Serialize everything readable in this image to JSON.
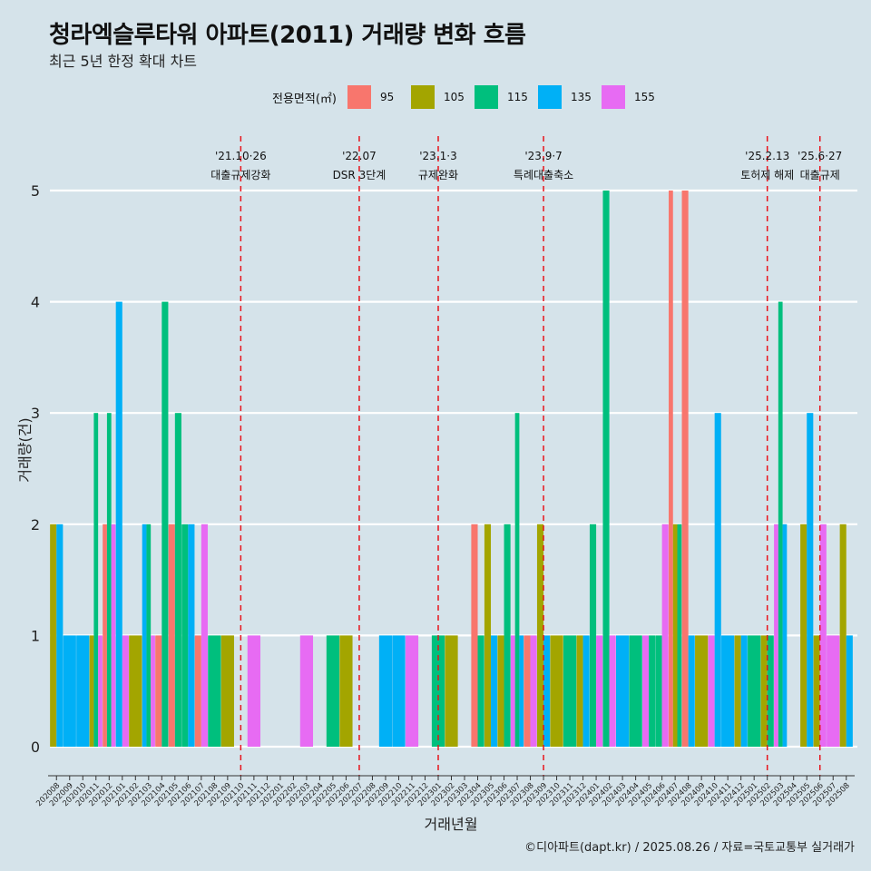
{
  "title": "청라엑슬루타워 아파트(2011) 거래량 변화 흐름",
  "subtitle": "최근 5년 한정 확대 차트",
  "footer": "©디아파트(dapt.kr) / 2025.08.26 / 자료=국토교통부 실거래가",
  "legend": {
    "title": "전용면적(㎡)",
    "items": [
      {
        "label": "95",
        "color": "#f8766d"
      },
      {
        "label": "105",
        "color": "#a3a500"
      },
      {
        "label": "115",
        "color": "#00bf7d"
      },
      {
        "label": "135",
        "color": "#00b0f6"
      },
      {
        "label": "155",
        "color": "#e76bf3"
      }
    ]
  },
  "chart_data": {
    "type": "bar",
    "title": "청라엑슬루타워 아파트(2011) 거래량 변화 흐름",
    "xlabel": "거래년월",
    "ylabel": "거래량(건)",
    "ylim": [
      0,
      5.3
    ],
    "yticks": [
      0,
      1,
      2,
      3,
      4,
      5
    ],
    "categories": [
      "202008",
      "202009",
      "202010",
      "202011",
      "202012",
      "202101",
      "202102",
      "202103",
      "202104",
      "202105",
      "202106",
      "202107",
      "202108",
      "202109",
      "202110",
      "202111",
      "202112",
      "202201",
      "202202",
      "202203",
      "202204",
      "202205",
      "202206",
      "202207",
      "202208",
      "202209",
      "202210",
      "202211",
      "202212",
      "202301",
      "202302",
      "202303",
      "202304",
      "202305",
      "202306",
      "202307",
      "202308",
      "202309",
      "202310",
      "202311",
      "202312",
      "202401",
      "202402",
      "202403",
      "202404",
      "202405",
      "202406",
      "202407",
      "202408",
      "202409",
      "202410",
      "202411",
      "202412",
      "202501",
      "202502",
      "202503",
      "202504",
      "202505",
      "202506",
      "202507",
      "202508"
    ],
    "series_colors": {
      "95": "#f8766d",
      "105": "#a3a500",
      "115": "#00bf7d",
      "135": "#00b0f6",
      "155": "#e76bf3"
    },
    "months": [
      {
        "m": "202008",
        "bars": [
          [
            "105",
            2
          ],
          [
            "135",
            2
          ]
        ]
      },
      {
        "m": "202009",
        "bars": [
          [
            "135",
            1
          ]
        ]
      },
      {
        "m": "202010",
        "bars": [
          [
            "135",
            1
          ]
        ]
      },
      {
        "m": "202011",
        "bars": [
          [
            "105",
            1
          ],
          [
            "115",
            3
          ],
          [
            "155",
            1
          ]
        ]
      },
      {
        "m": "202012",
        "bars": [
          [
            "95",
            2
          ],
          [
            "115",
            3
          ],
          [
            "155",
            2
          ]
        ]
      },
      {
        "m": "202101",
        "bars": [
          [
            "135",
            4
          ],
          [
            "155",
            1
          ]
        ]
      },
      {
        "m": "202102",
        "bars": [
          [
            "105",
            1
          ]
        ]
      },
      {
        "m": "202103",
        "bars": [
          [
            "135",
            2
          ],
          [
            "115",
            2
          ],
          [
            "155",
            1
          ]
        ]
      },
      {
        "m": "202104",
        "bars": [
          [
            "95",
            1
          ],
          [
            "115",
            4
          ]
        ]
      },
      {
        "m": "202105",
        "bars": [
          [
            "95",
            2
          ],
          [
            "115",
            3
          ]
        ]
      },
      {
        "m": "202106",
        "bars": [
          [
            "115",
            2
          ],
          [
            "135",
            2
          ]
        ]
      },
      {
        "m": "202107",
        "bars": [
          [
            "95",
            1
          ],
          [
            "155",
            2
          ]
        ]
      },
      {
        "m": "202108",
        "bars": [
          [
            "115",
            1
          ]
        ]
      },
      {
        "m": "202109",
        "bars": [
          [
            "105",
            1
          ]
        ]
      },
      {
        "m": "202110",
        "bars": []
      },
      {
        "m": "202111",
        "bars": [
          [
            "155",
            1
          ]
        ]
      },
      {
        "m": "202112",
        "bars": []
      },
      {
        "m": "202201",
        "bars": []
      },
      {
        "m": "202202",
        "bars": []
      },
      {
        "m": "202203",
        "bars": [
          [
            "155",
            1
          ]
        ]
      },
      {
        "m": "202204",
        "bars": []
      },
      {
        "m": "202205",
        "bars": [
          [
            "115",
            1
          ]
        ]
      },
      {
        "m": "202206",
        "bars": [
          [
            "105",
            1
          ]
        ]
      },
      {
        "m": "202207",
        "bars": []
      },
      {
        "m": "202208",
        "bars": []
      },
      {
        "m": "202209",
        "bars": [
          [
            "135",
            1
          ]
        ]
      },
      {
        "m": "202210",
        "bars": [
          [
            "135",
            1
          ]
        ]
      },
      {
        "m": "202211",
        "bars": [
          [
            "155",
            1
          ]
        ]
      },
      {
        "m": "202212",
        "bars": []
      },
      {
        "m": "202301",
        "bars": [
          [
            "115",
            1
          ]
        ]
      },
      {
        "m": "202302",
        "bars": [
          [
            "105",
            1
          ]
        ]
      },
      {
        "m": "202303",
        "bars": []
      },
      {
        "m": "202304",
        "bars": [
          [
            "95",
            2
          ],
          [
            "115",
            1
          ]
        ]
      },
      {
        "m": "202305",
        "bars": [
          [
            "105",
            2
          ],
          [
            "135",
            1
          ]
        ]
      },
      {
        "m": "202306",
        "bars": [
          [
            "105",
            1
          ],
          [
            "115",
            2
          ]
        ]
      },
      {
        "m": "202307",
        "bars": [
          [
            "155",
            1
          ],
          [
            "115",
            3
          ],
          [
            "135",
            1
          ]
        ]
      },
      {
        "m": "202308",
        "bars": [
          [
            "95",
            1
          ],
          [
            "155",
            1
          ]
        ]
      },
      {
        "m": "202309",
        "bars": [
          [
            "105",
            2
          ],
          [
            "135",
            1
          ]
        ]
      },
      {
        "m": "202310",
        "bars": [
          [
            "105",
            1
          ]
        ]
      },
      {
        "m": "202311",
        "bars": [
          [
            "115",
            1
          ]
        ]
      },
      {
        "m": "202312",
        "bars": [
          [
            "105",
            1
          ],
          [
            "135",
            1
          ]
        ]
      },
      {
        "m": "202401",
        "bars": [
          [
            "115",
            2
          ],
          [
            "155",
            1
          ]
        ]
      },
      {
        "m": "202402",
        "bars": [
          [
            "115",
            5
          ],
          [
            "155",
            1
          ]
        ]
      },
      {
        "m": "202403",
        "bars": [
          [
            "135",
            1
          ]
        ]
      },
      {
        "m": "202404",
        "bars": [
          [
            "115",
            1
          ]
        ]
      },
      {
        "m": "202405",
        "bars": [
          [
            "155",
            1
          ],
          [
            "115",
            1
          ]
        ]
      },
      {
        "m": "202406",
        "bars": [
          [
            "115",
            1
          ],
          [
            "155",
            2
          ]
        ]
      },
      {
        "m": "202407",
        "bars": [
          [
            "95",
            5
          ],
          [
            "105",
            2
          ],
          [
            "115",
            2
          ]
        ]
      },
      {
        "m": "202408",
        "bars": [
          [
            "95",
            5
          ],
          [
            "135",
            1
          ]
        ]
      },
      {
        "m": "202409",
        "bars": [
          [
            "105",
            1
          ]
        ]
      },
      {
        "m": "202410",
        "bars": [
          [
            "155",
            1
          ],
          [
            "135",
            3
          ]
        ]
      },
      {
        "m": "202411",
        "bars": [
          [
            "135",
            1
          ]
        ]
      },
      {
        "m": "202412",
        "bars": [
          [
            "105",
            1
          ],
          [
            "135",
            1
          ]
        ]
      },
      {
        "m": "202501",
        "bars": [
          [
            "115",
            1
          ]
        ]
      },
      {
        "m": "202502",
        "bars": [
          [
            "105",
            1
          ],
          [
            "115",
            1
          ]
        ]
      },
      {
        "m": "202503",
        "bars": [
          [
            "155",
            2
          ],
          [
            "115",
            4
          ],
          [
            "135",
            2
          ]
        ]
      },
      {
        "m": "202504",
        "bars": []
      },
      {
        "m": "202505",
        "bars": [
          [
            "105",
            2
          ],
          [
            "135",
            3
          ]
        ]
      },
      {
        "m": "202506",
        "bars": [
          [
            "105",
            1
          ],
          [
            "155",
            2
          ]
        ]
      },
      {
        "m": "202507",
        "bars": [
          [
            "155",
            1
          ]
        ]
      },
      {
        "m": "202508",
        "bars": [
          [
            "105",
            2
          ],
          [
            "135",
            1
          ]
        ]
      }
    ],
    "events": [
      {
        "month": "202110",
        "date": "'21.10·26",
        "label": "대출규제강화"
      },
      {
        "month": "202207",
        "date": "'22.07",
        "label": "DSR 3단계"
      },
      {
        "month": "202301",
        "date": "'23.1·3",
        "label": "규제완화"
      },
      {
        "month": "202309",
        "date": "'23.9·7",
        "label": "특례대출축소"
      },
      {
        "month": "202502",
        "date": "'25.2.13",
        "label": "토허제 해제"
      },
      {
        "month": "202506",
        "date": "'25.6·27",
        "label": "대출규제"
      }
    ]
  }
}
